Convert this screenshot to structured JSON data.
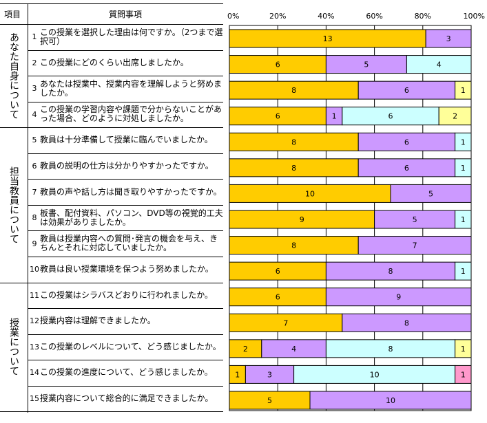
{
  "table": {
    "header_item": "項目",
    "header_question": "質問事項",
    "groups": [
      {
        "label": "あなた自身について",
        "rows": 4
      },
      {
        "label": "担当教員について",
        "rows": 6
      },
      {
        "label": "授業について",
        "rows": 5
      }
    ],
    "questions": [
      {
        "num": "1",
        "text": "この授業を選択した理由は何ですか。（2つまで選択可）"
      },
      {
        "num": "2",
        "text": "この授業にどのくらい出席しましたか。"
      },
      {
        "num": "3",
        "text": "あなたは授業中、授業内容を理解しようと努めましたか。"
      },
      {
        "num": "4",
        "text": "この授業の学習内容や課題で分からないことがあった場合、どのように対処しましたか。"
      },
      {
        "num": "5",
        "text": "教員は十分準備して授業に臨んでいましたか。"
      },
      {
        "num": "6",
        "text": "教員の説明の仕方は分かりやすかったですか。"
      },
      {
        "num": "7",
        "text": "教員の声や話し方は聞き取りやすかったですか。"
      },
      {
        "num": "8",
        "text": "板書、配付資料、パソコン、DVD等の視覚的工夫は効果がありましたか。"
      },
      {
        "num": "9",
        "text": "教員は授業内容への質問･発言の機会を与え、きちんとそれに対応していましたか。"
      },
      {
        "num": "10",
        "text": "教員は良い授業環境を保つよう努めましたか。"
      },
      {
        "num": "11",
        "text": "この授業はシラバスどおりに行われましたか。"
      },
      {
        "num": "12",
        "text": "授業内容は理解できましたか。"
      },
      {
        "num": "13",
        "text": "この授業のレベルについて、どう感じましたか。"
      },
      {
        "num": "14",
        "text": "この授業の進度について、どう感じましたか。"
      },
      {
        "num": "15",
        "text": "授業内容について総合的に満足できましたか。"
      }
    ]
  },
  "chart_data": {
    "type": "bar",
    "orientation": "horizontal",
    "stacked": "percent",
    "categories": [
      "1",
      "2",
      "3",
      "4",
      "5",
      "6",
      "7",
      "8",
      "9",
      "10",
      "11",
      "12",
      "13",
      "14",
      "15"
    ],
    "series": [
      {
        "name": "",
        "color": "#FFCC00",
        "values": [
          13,
          6,
          8,
          6,
          8,
          8,
          10,
          9,
          8,
          6,
          6,
          7,
          2,
          1,
          5
        ]
      },
      {
        "name": "",
        "color": "#CC99FF",
        "values": [
          3,
          5,
          6,
          1,
          6,
          6,
          5,
          5,
          7,
          8,
          9,
          8,
          4,
          3,
          10
        ]
      },
      {
        "name": "",
        "color": "#CCFFFF",
        "values": [
          0,
          4,
          0,
          6,
          1,
          1,
          0,
          1,
          0,
          1,
          0,
          0,
          8,
          10,
          0
        ]
      },
      {
        "name": "",
        "color": "#FFFF99",
        "values": [
          0,
          0,
          1,
          2,
          0,
          0,
          0,
          0,
          0,
          0,
          0,
          0,
          1,
          0,
          0
        ]
      },
      {
        "name": "",
        "color": "#FF99CC",
        "values": [
          0,
          0,
          0,
          0,
          0,
          0,
          0,
          0,
          0,
          0,
          0,
          0,
          0,
          1,
          0
        ]
      }
    ],
    "xticks": [
      "0%",
      "20%",
      "40%",
      "60%",
      "80%",
      "100%"
    ],
    "xlim": [
      0,
      100
    ],
    "grid": true,
    "legend": "none",
    "data_labels": true
  }
}
